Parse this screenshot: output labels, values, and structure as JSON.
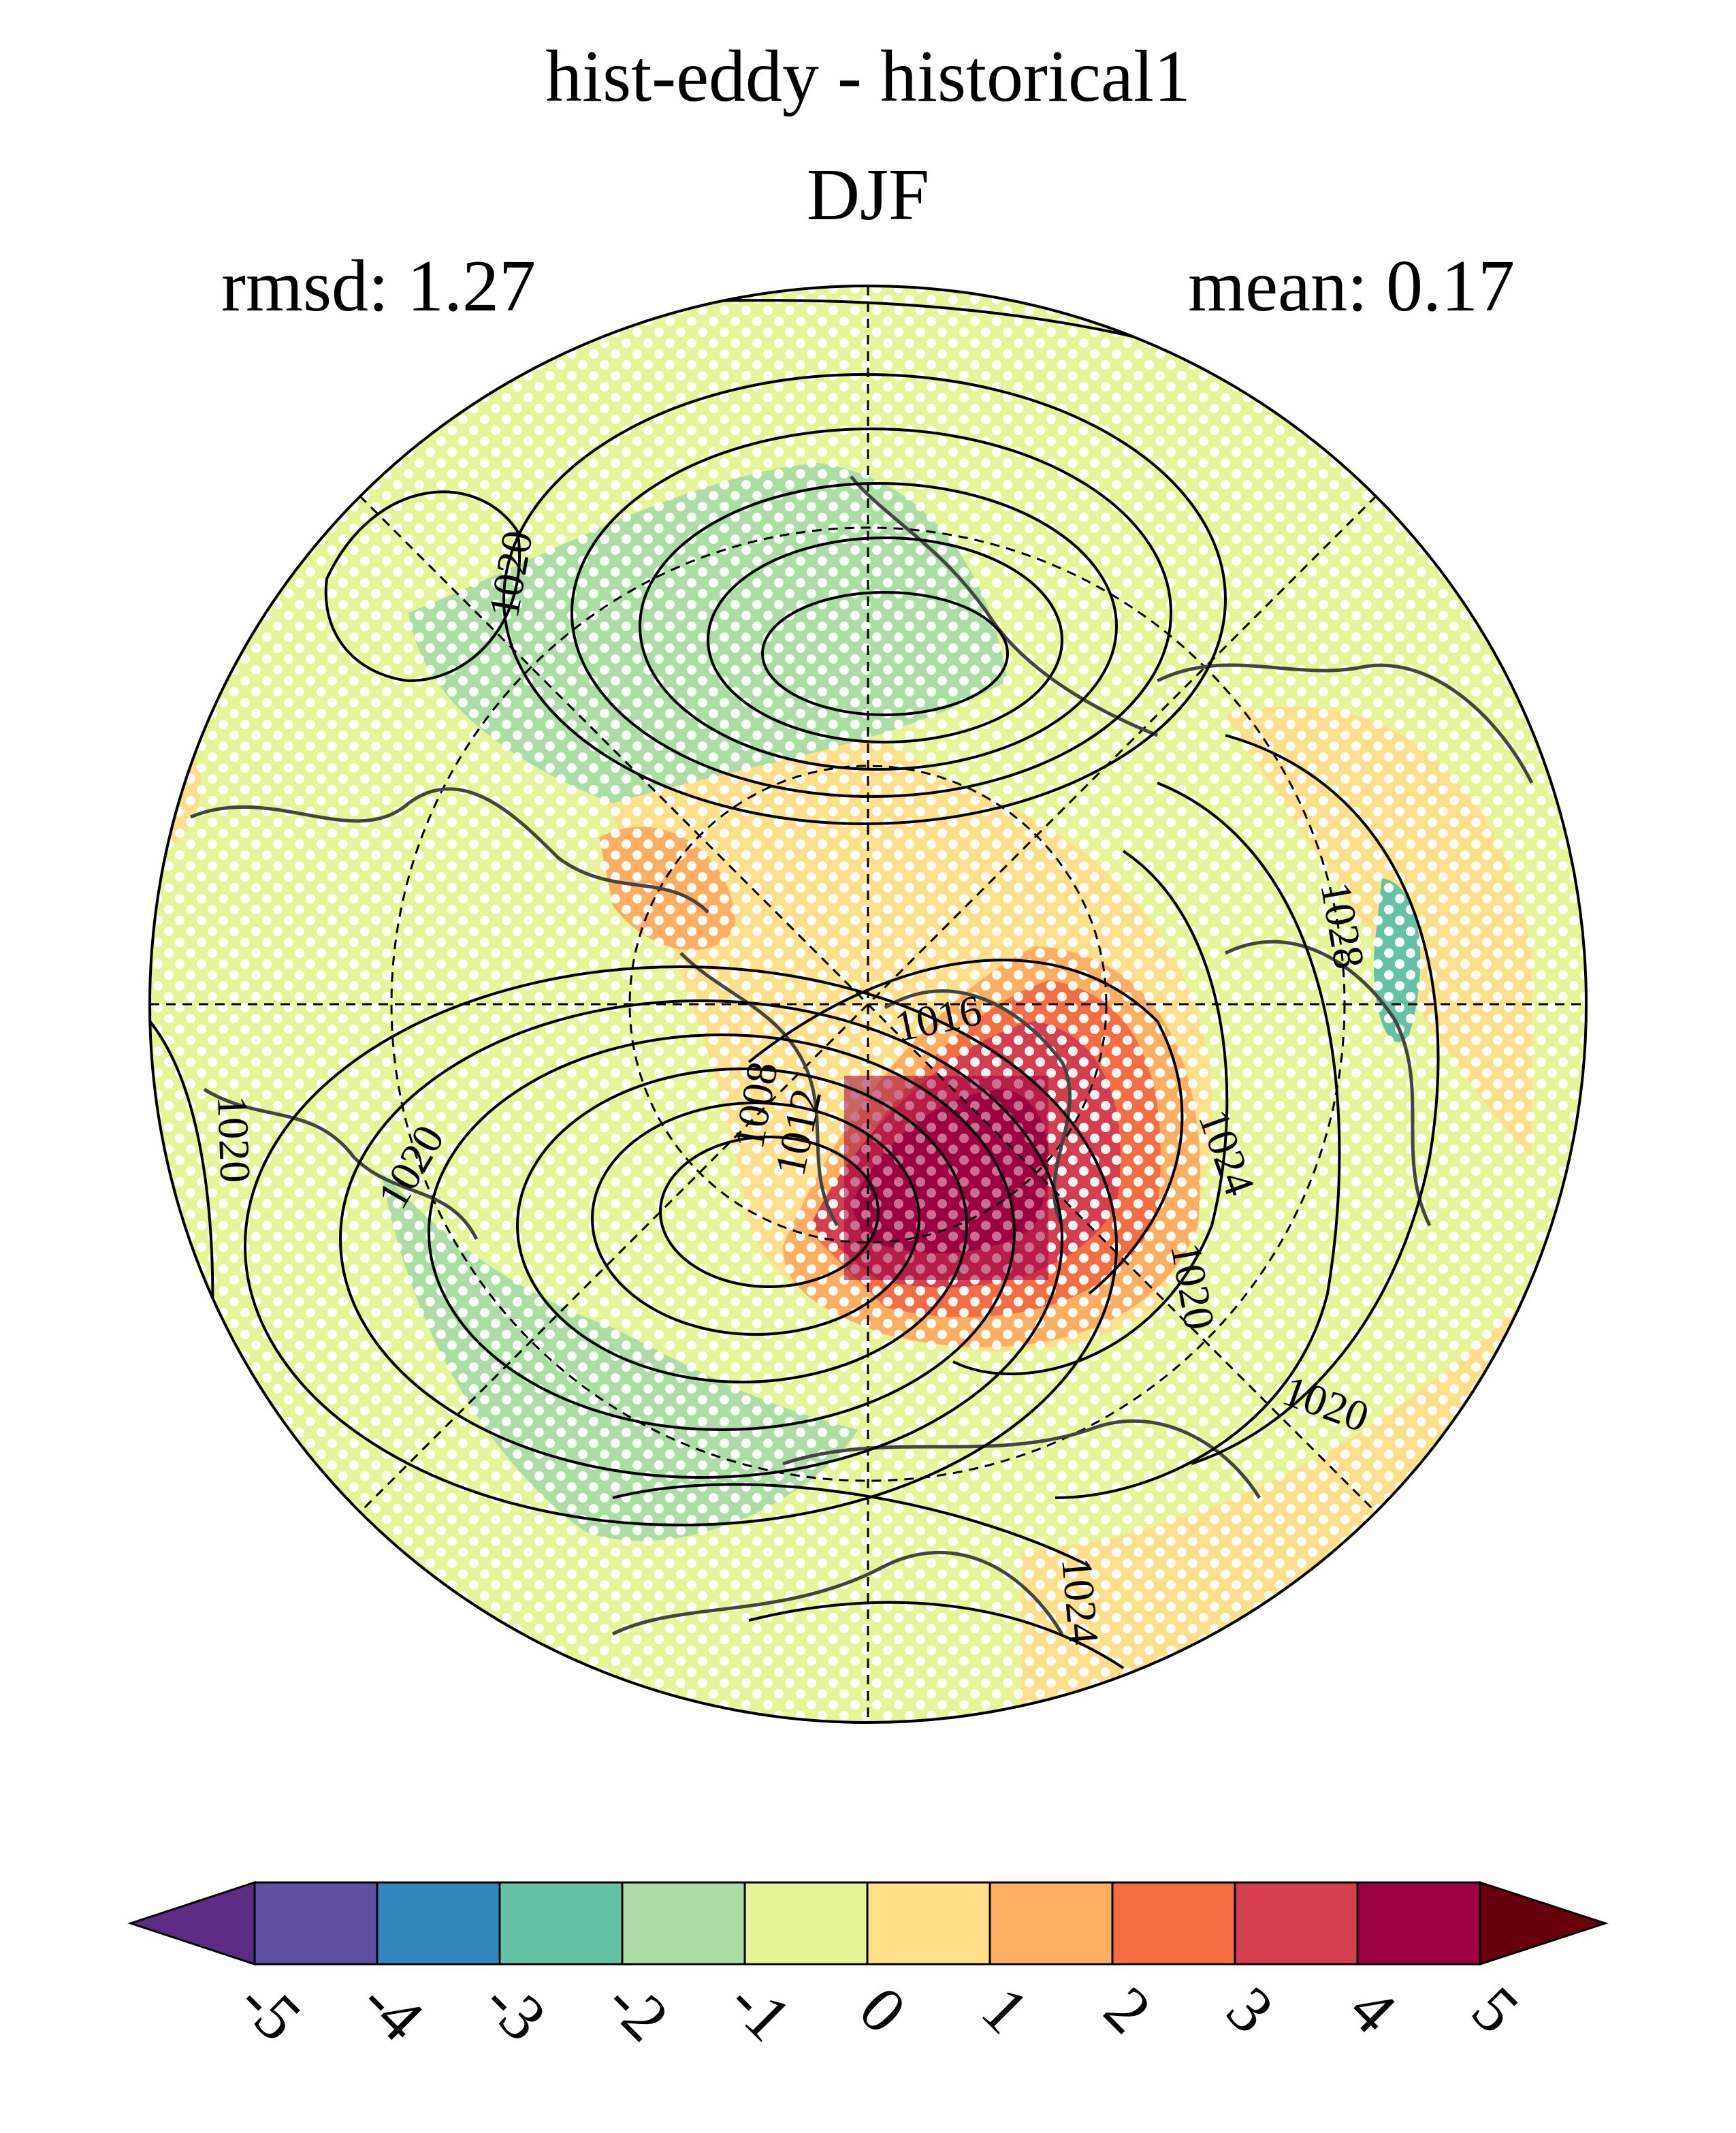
{
  "title": {
    "line1": "hist-eddy - historical1",
    "line2": "DJF",
    "rmsd": "rmsd: 1.27",
    "mean": "mean: 0.17"
  },
  "map": {
    "projection": "north-polar-stereographic",
    "field": "sea-level-pressure-difference",
    "stippling": "white-dots",
    "contour_labels": [
      "1020",
      "1020",
      "1016",
      "1008",
      "1012",
      "1020",
      "1024",
      "1020",
      "1028",
      "1020",
      "1024"
    ]
  },
  "colorbar": {
    "ticks": [
      "-5",
      "-4",
      "-3",
      "-2",
      "-1",
      "0",
      "1",
      "2",
      "3",
      "4",
      "5"
    ],
    "colors": [
      "#5e4fa2",
      "#3288bd",
      "#66c2a5",
      "#abdda4",
      "#e6f598",
      "#fee08b",
      "#fdae61",
      "#f46d43",
      "#d53e4f",
      "#9e0142"
    ],
    "under_color": "#5a2d82",
    "over_color": "#67000d"
  }
}
